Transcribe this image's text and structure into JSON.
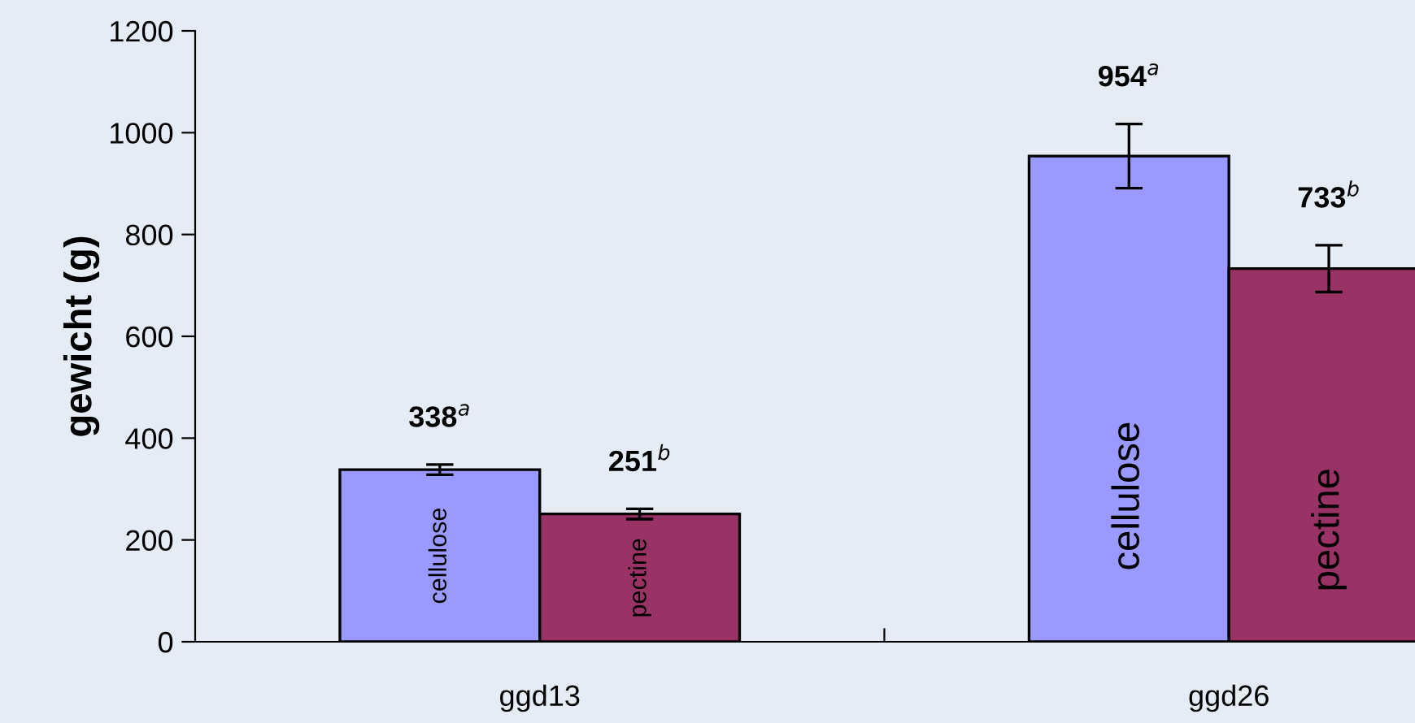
{
  "chart_data": {
    "type": "bar",
    "ylabel": "gewicht (g)",
    "categories": [
      "ggd13",
      "ggd26"
    ],
    "series": [
      {
        "name": "cellulose",
        "color": "#9999ff",
        "values": [
          338,
          954
        ],
        "errors": [
          10,
          63
        ],
        "value_labels": [
          "338$^{a}$",
          "954$^{a}$"
        ]
      },
      {
        "name": "pectine",
        "color": "#993366",
        "values": [
          251,
          733
        ],
        "errors": [
          10,
          46
        ],
        "value_labels": [
          "251$^{b}$",
          "733$^{b}$"
        ]
      }
    ],
    "ylim": [
      0,
      1200
    ],
    "yticks": [
      0,
      200,
      400,
      600,
      800,
      1000,
      1200
    ],
    "grid": false,
    "legend": false
  }
}
